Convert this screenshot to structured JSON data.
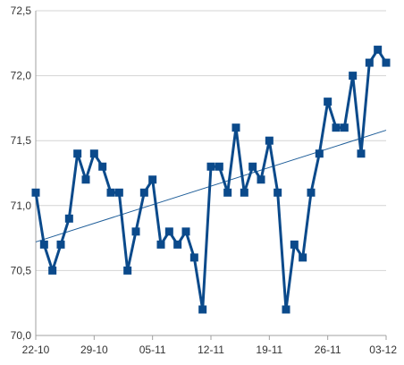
{
  "chart_data": {
    "type": "line",
    "title": "",
    "xlabel": "",
    "ylabel": "",
    "ylim": [
      70.0,
      72.5
    ],
    "y_ticks": [
      70.0,
      70.5,
      71.0,
      71.5,
      72.0,
      72.5
    ],
    "y_tick_labels": [
      "70,0",
      "70,5",
      "71,0",
      "71,5",
      "72,0",
      "72,5"
    ],
    "x_tick_labels": [
      "22-10",
      "29-10",
      "05-11",
      "12-11",
      "19-11",
      "26-11",
      "03-12"
    ],
    "x_tick_positions": [
      0,
      7,
      14,
      21,
      28,
      35,
      42
    ],
    "x_range": [
      0,
      42
    ],
    "grid": "horizontal",
    "legend": "none",
    "colors": {
      "series": "#0b4a8b",
      "trend": "#1f5e99",
      "grid": "#d4d4d4",
      "axis": "#a0a0a0"
    },
    "series": [
      {
        "x": [
          0,
          1,
          2,
          3,
          4,
          5,
          6,
          7,
          8,
          9,
          10,
          11,
          12,
          13,
          14,
          15,
          16,
          17,
          18,
          19,
          20,
          21,
          22,
          23,
          24,
          25,
          26,
          27,
          28,
          29,
          30,
          31,
          32,
          33,
          34,
          35,
          36,
          37,
          38,
          39,
          40,
          41,
          42
        ],
        "values": [
          71.1,
          70.7,
          70.5,
          70.7,
          70.9,
          71.4,
          71.2,
          71.4,
          71.3,
          71.1,
          71.1,
          70.5,
          70.8,
          71.1,
          71.2,
          70.7,
          70.8,
          70.7,
          70.8,
          70.6,
          70.2,
          71.3,
          71.3,
          71.1,
          71.6,
          71.1,
          71.3,
          71.2,
          71.5,
          71.1,
          70.2,
          70.7,
          70.6,
          71.1,
          71.4,
          71.8,
          71.6,
          71.6,
          72.0,
          71.4,
          72.1,
          72.2,
          72.1
        ],
        "marker": "square"
      }
    ],
    "trendline": {
      "type": "linear",
      "start": [
        0,
        70.72
      ],
      "end": [
        42,
        71.58
      ]
    }
  }
}
